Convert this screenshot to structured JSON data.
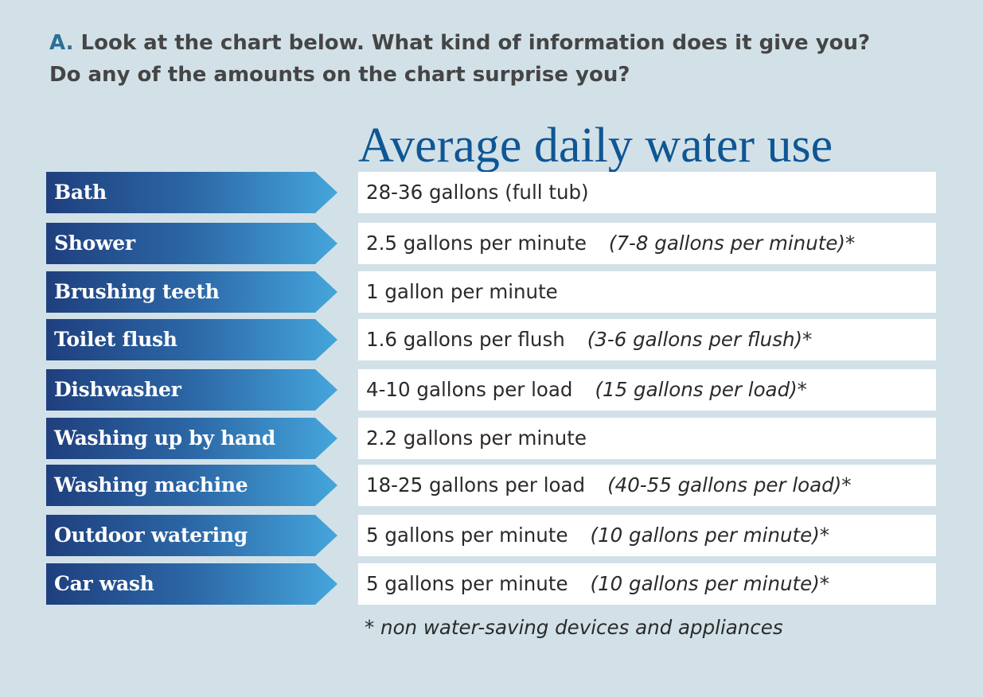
{
  "question": {
    "letter": "A.",
    "line1": "Look at the chart below. What kind of information does it give you?",
    "line2": "Do any of the amounts on the chart surprise you?"
  },
  "title": "Average daily water use",
  "rows": [
    {
      "label": "Bath",
      "value": "28-36 gallons (full tub)",
      "note": ""
    },
    {
      "label": "Shower",
      "value": "2.5 gallons per minute",
      "note": "(7-8 gallons per minute)*"
    },
    {
      "label": "Brushing teeth",
      "value": "1 gallon per minute",
      "note": ""
    },
    {
      "label": "Toilet flush",
      "value": "1.6 gallons per flush",
      "note": "(3-6 gallons per flush)*"
    },
    {
      "label": "Dishwasher",
      "value": "4-10 gallons per load",
      "note": "(15 gallons per load)*"
    },
    {
      "label": "Washing up by hand",
      "value": "2.2 gallons per minute",
      "note": ""
    },
    {
      "label": "Washing machine",
      "value": "18-25 gallons per load",
      "note": "(40-55 gallons per load)*"
    },
    {
      "label": "Outdoor watering",
      "value": "5 gallons per minute",
      "note": "(10 gallons per minute)*"
    },
    {
      "label": "Car wash",
      "value": "5 gallons per minute",
      "note": "(10 gallons per minute)*"
    }
  ],
  "footnote": "* non water-saving devices and appliances",
  "colors": {
    "background": "#d2e1e8",
    "title": "#0f5694",
    "label_gradient_start": "#1f3f7e",
    "label_gradient_end": "#45a6dc",
    "question_letter": "#2e6f97"
  }
}
